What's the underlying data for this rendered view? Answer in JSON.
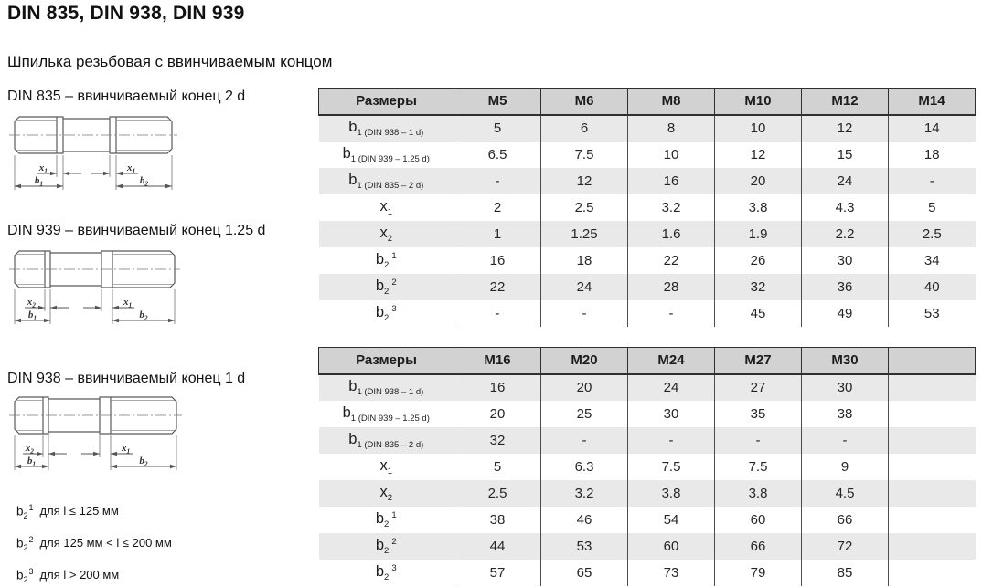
{
  "page": {
    "title": "DIN 835, DIN 938, DIN 939",
    "subtitle": "Шпилька резьбовая с ввинчиваемым концом"
  },
  "drawings": [
    {
      "caption": "DIN 835 – ввинчиваемый конец 2 d",
      "dim_left": {
        "base": "x",
        "sub": "1"
      },
      "dim_right": {
        "base": "x",
        "sub": "1"
      },
      "b_left": {
        "base": "b",
        "sub": "1"
      },
      "b_right": {
        "base": "b",
        "sub": "2"
      }
    },
    {
      "caption": "DIN 939 – ввинчиваемый конец 1.25 d",
      "dim_left": {
        "base": "x",
        "sub": "2"
      },
      "dim_right": {
        "base": "x",
        "sub": "1"
      },
      "b_left": {
        "base": "b",
        "sub": "1"
      },
      "b_right": {
        "base": "b",
        "sub": "2"
      }
    },
    {
      "caption": "DIN 938 – ввинчиваемый конец 1 d",
      "dim_left": {
        "base": "x",
        "sub": "2"
      },
      "dim_right": {
        "base": "x",
        "sub": "1"
      },
      "b_left": {
        "base": "b",
        "sub": "1"
      },
      "b_right": {
        "base": "b",
        "sub": "2"
      }
    }
  ],
  "tables": [
    {
      "header_label": "Размеры",
      "columns": [
        "M5",
        "M6",
        "M8",
        "M10",
        "M12",
        "M14"
      ],
      "rows": [
        {
          "label": {
            "base": "b",
            "sub": "1 (DIN 938 – 1 d)",
            "sup": ""
          },
          "values": [
            "5",
            "6",
            "8",
            "10",
            "12",
            "14"
          ]
        },
        {
          "label": {
            "base": "b",
            "sub": "1 (DIN 939 – 1.25 d)",
            "sup": ""
          },
          "values": [
            "6.5",
            "7.5",
            "10",
            "12",
            "15",
            "18"
          ]
        },
        {
          "label": {
            "base": "b",
            "sub": "1 (DIN 835 – 2 d)",
            "sup": ""
          },
          "values": [
            "-",
            "12",
            "16",
            "20",
            "24",
            "-"
          ]
        },
        {
          "label": {
            "base": "x",
            "sub": "1",
            "sup": ""
          },
          "values": [
            "2",
            "2.5",
            "3.2",
            "3.8",
            "4.3",
            "5"
          ]
        },
        {
          "label": {
            "base": "x",
            "sub": "2",
            "sup": ""
          },
          "values": [
            "1",
            "1.25",
            "1.6",
            "1.9",
            "2.2",
            "2.5"
          ]
        },
        {
          "label": {
            "base": "b",
            "sub": "2",
            "sup": "1"
          },
          "values": [
            "16",
            "18",
            "22",
            "26",
            "30",
            "34"
          ]
        },
        {
          "label": {
            "base": "b",
            "sub": "2",
            "sup": "2"
          },
          "values": [
            "22",
            "24",
            "28",
            "32",
            "36",
            "40"
          ]
        },
        {
          "label": {
            "base": "b",
            "sub": "2",
            "sup": "3"
          },
          "values": [
            "-",
            "-",
            "-",
            "45",
            "49",
            "53"
          ]
        }
      ]
    },
    {
      "header_label": "Размеры",
      "columns": [
        "M16",
        "M20",
        "M24",
        "M27",
        "M30",
        ""
      ],
      "rows": [
        {
          "label": {
            "base": "b",
            "sub": "1 (DIN 938 – 1 d)",
            "sup": ""
          },
          "values": [
            "16",
            "20",
            "24",
            "27",
            "30",
            ""
          ]
        },
        {
          "label": {
            "base": "b",
            "sub": "1 (DIN 939 – 1.25 d)",
            "sup": ""
          },
          "values": [
            "20",
            "25",
            "30",
            "35",
            "38",
            ""
          ]
        },
        {
          "label": {
            "base": "b",
            "sub": "1 (DIN 835 – 2 d)",
            "sup": ""
          },
          "values": [
            "32",
            "-",
            "-",
            "-",
            "-",
            ""
          ]
        },
        {
          "label": {
            "base": "x",
            "sub": "1",
            "sup": ""
          },
          "values": [
            "5",
            "6.3",
            "7.5",
            "7.5",
            "9",
            ""
          ]
        },
        {
          "label": {
            "base": "x",
            "sub": "2",
            "sup": ""
          },
          "values": [
            "2.5",
            "3.2",
            "3.8",
            "3.8",
            "4.5",
            ""
          ]
        },
        {
          "label": {
            "base": "b",
            "sub": "2",
            "sup": "1"
          },
          "values": [
            "38",
            "46",
            "54",
            "60",
            "66",
            ""
          ]
        },
        {
          "label": {
            "base": "b",
            "sub": "2",
            "sup": "2"
          },
          "values": [
            "44",
            "53",
            "60",
            "66",
            "72",
            ""
          ]
        },
        {
          "label": {
            "base": "b",
            "sub": "2",
            "sup": "3"
          },
          "values": [
            "57",
            "65",
            "73",
            "79",
            "85",
            ""
          ]
        }
      ]
    }
  ],
  "footnotes": [
    {
      "base": "b",
      "sub": "2",
      "sup": "1",
      "text": "для l ≤ 125 мм"
    },
    {
      "base": "b",
      "sub": "2",
      "sup": "2",
      "text": "для 125 мм < l ≤ 200 мм"
    },
    {
      "base": "b",
      "sub": "2",
      "sup": "3",
      "text": "для l > 200 мм"
    }
  ],
  "colors": {
    "header_bg": "#d2d2d2",
    "row_shade": "#e9e9e9",
    "table_line": "#2f2f2f",
    "grid_line": "#4d4d4d",
    "text": "#1a1a1a"
  }
}
